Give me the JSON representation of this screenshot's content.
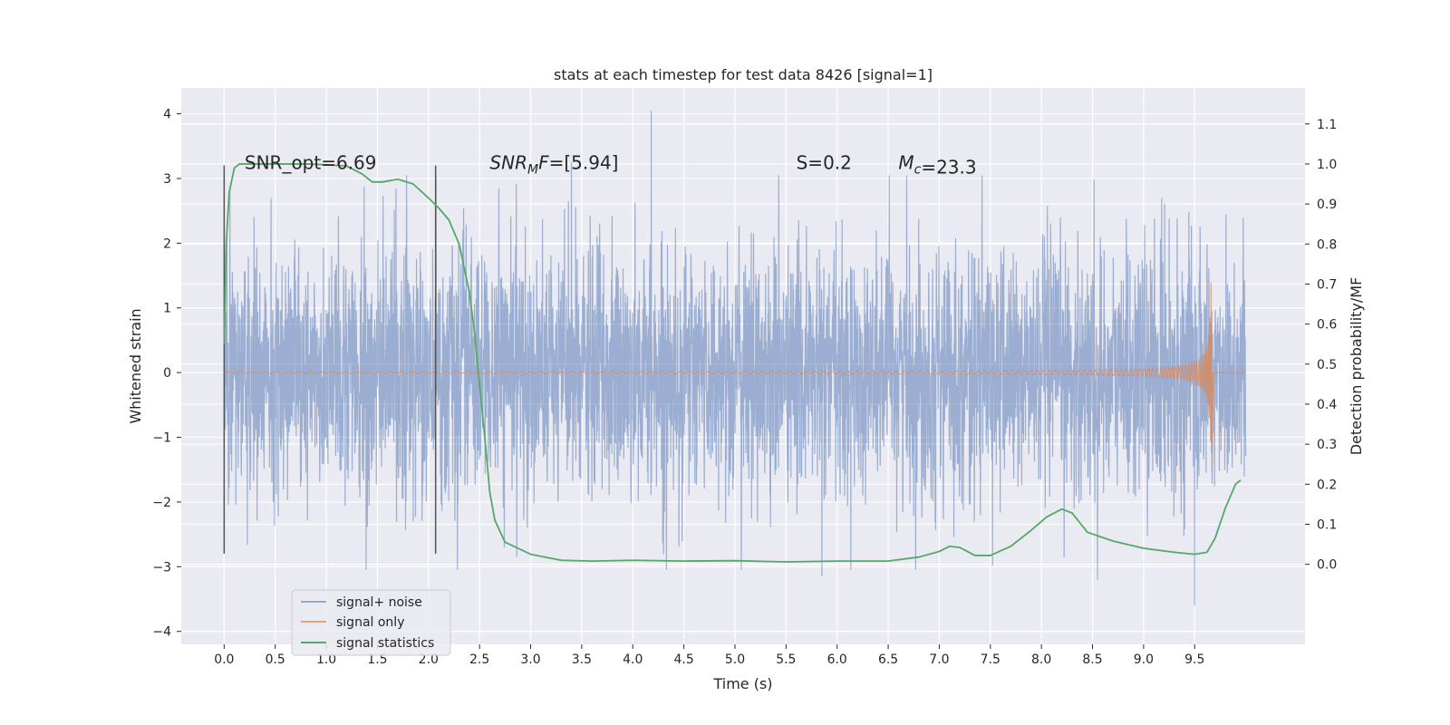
{
  "chart_data": {
    "type": "line",
    "title": "stats at each timestep for test data 8426 [signal=1]",
    "xlabel": "Time (s)",
    "ylabel": "Whitened strain",
    "y2label": "Detection probability/MF",
    "xlim": [
      -0.42,
      10.58
    ],
    "ylim": [
      -4.2,
      4.4
    ],
    "y2lim": [
      -0.2,
      1.19
    ],
    "x_ticks": [
      0.0,
      0.5,
      1.0,
      1.5,
      2.0,
      2.5,
      3.0,
      3.5,
      4.0,
      4.5,
      5.0,
      5.5,
      6.0,
      6.5,
      7.0,
      7.5,
      8.0,
      8.5,
      9.0,
      9.5
    ],
    "x_tick_labels": [
      "0.0",
      "0.5",
      "1.0",
      "1.5",
      "2.0",
      "2.5",
      "3.0",
      "3.5",
      "4.0",
      "4.5",
      "5.0",
      "5.5",
      "6.0",
      "6.5",
      "7.0",
      "7.5",
      "8.0",
      "8.5",
      "9.0",
      "9.5"
    ],
    "y_ticks": [
      -4,
      -3,
      -2,
      -1,
      0,
      1,
      2,
      3,
      4
    ],
    "y_tick_labels": [
      "−4",
      "−3",
      "−2",
      "−1",
      "0",
      "1",
      "2",
      "3",
      "4"
    ],
    "y2_ticks": [
      0.0,
      0.1,
      0.2,
      0.3,
      0.4,
      0.5,
      0.6,
      0.7,
      0.8,
      0.9,
      1.0,
      1.1
    ],
    "y2_tick_labels": [
      "0.0",
      "0.1",
      "0.2",
      "0.3",
      "0.4",
      "0.5",
      "0.6",
      "0.7",
      "0.8",
      "0.9",
      "1.0",
      "1.1"
    ],
    "grid": true,
    "legend_position": "bottom-left",
    "annotations": [
      {
        "text": "SNR_opt=6.69",
        "x": 0.2,
        "y": 3.2
      },
      {
        "text": "SNR_M F=[5.94]",
        "x": 2.6,
        "y": 3.2
      },
      {
        "text": "S=0.2",
        "x": 5.6,
        "y": 3.2
      },
      {
        "text": "M_c=23.3",
        "x": 6.6,
        "y": 3.2
      }
    ],
    "vertical_markers": [
      {
        "x": 0.0,
        "y_top": 3.2,
        "y_bottom": -2.8
      },
      {
        "x": 2.07,
        "y_top": 3.2,
        "y_bottom": -2.8
      }
    ],
    "series": [
      {
        "name": "signal+ noise",
        "color": "#4c72b0",
        "axis": "left",
        "x_range": [
          0.0,
          10.0
        ],
        "samples": 4096,
        "value_range": [
          -3.6,
          4.05
        ],
        "typical_band": [
          -1.4,
          1.45
        ],
        "peaks": [
          {
            "x": 4.18,
            "y": 4.05
          },
          {
            "x": 9.5,
            "y": -3.6
          },
          {
            "x": 5.85,
            "y": -3.15
          },
          {
            "x": 8.55,
            "y": -3.2
          },
          {
            "x": 1.39,
            "y": -3.05
          },
          {
            "x": 3.4,
            "y": 3.25
          },
          {
            "x": 6.77,
            "y": -3.05
          }
        ]
      },
      {
        "name": "signal only",
        "color": "#dd8452",
        "axis": "left",
        "x_range": [
          0.0,
          10.0
        ],
        "chirp_end": 9.67,
        "chirp_max_amplitude": 1.4,
        "chirp_min_amplitude": -1.55
      },
      {
        "name": "signal statistics",
        "color": "#55a868",
        "axis": "right",
        "x": [
          0.0,
          0.02,
          0.05,
          0.1,
          0.15,
          0.2,
          0.3,
          0.5,
          0.8,
          1.0,
          1.2,
          1.35,
          1.45,
          1.55,
          1.7,
          1.85,
          2.0,
          2.1,
          2.2,
          2.3,
          2.4,
          2.45,
          2.5,
          2.55,
          2.6,
          2.65,
          2.75,
          3.0,
          3.3,
          3.6,
          4.0,
          4.5,
          5.0,
          5.5,
          6.0,
          6.5,
          6.8,
          7.0,
          7.1,
          7.2,
          7.35,
          7.5,
          7.7,
          7.9,
          8.05,
          8.2,
          8.3,
          8.45,
          8.7,
          9.0,
          9.3,
          9.5,
          9.62,
          9.7,
          9.8,
          9.9,
          9.95
        ],
        "y": [
          0.55,
          0.8,
          0.93,
          0.99,
          1.0,
          1.0,
          1.0,
          1.0,
          1.0,
          0.998,
          0.995,
          0.975,
          0.955,
          0.955,
          0.962,
          0.95,
          0.915,
          0.89,
          0.86,
          0.8,
          0.68,
          0.58,
          0.45,
          0.32,
          0.18,
          0.11,
          0.055,
          0.025,
          0.01,
          0.008,
          0.01,
          0.008,
          0.009,
          0.006,
          0.008,
          0.008,
          0.018,
          0.032,
          0.045,
          0.042,
          0.022,
          0.022,
          0.045,
          0.085,
          0.118,
          0.138,
          0.128,
          0.08,
          0.058,
          0.04,
          0.03,
          0.025,
          0.03,
          0.065,
          0.14,
          0.2,
          0.21
        ]
      }
    ]
  }
}
